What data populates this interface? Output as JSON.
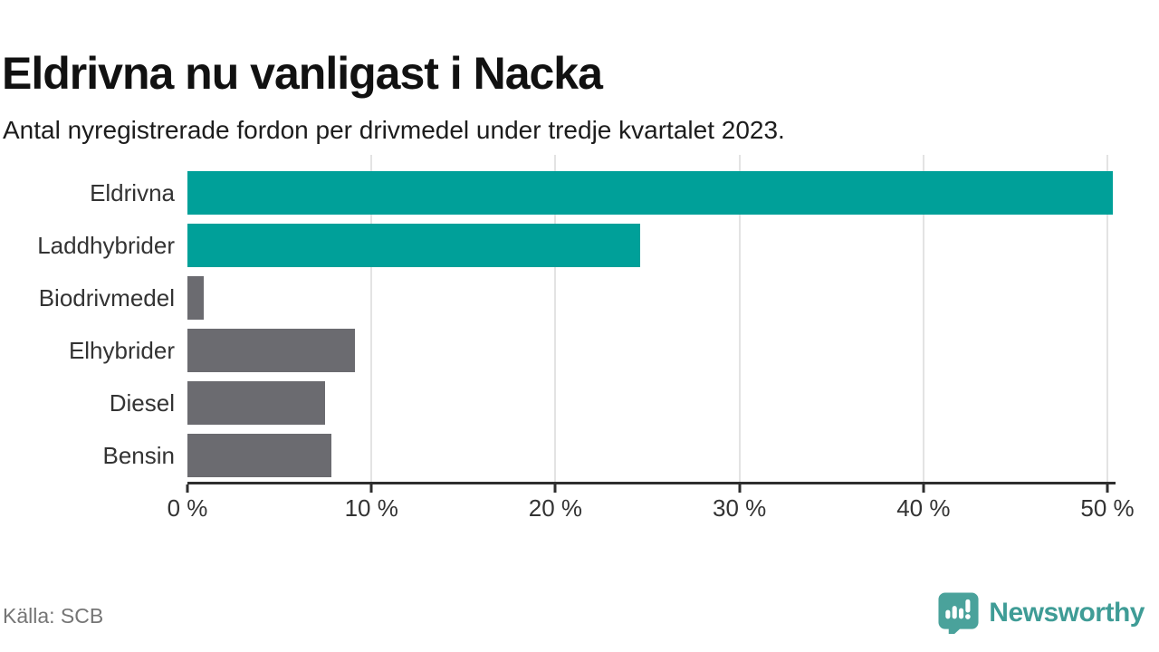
{
  "header": {
    "title": "Eldrivna nu vanligast i Nacka",
    "subtitle": "Antal nyregistrerade fordon per drivmedel under tredje kvartalet 2023."
  },
  "chart_data": {
    "type": "bar",
    "orientation": "horizontal",
    "title": "Eldrivna nu vanligast i Nacka",
    "subtitle": "Antal nyregistrerade fordon per drivmedel under tredje kvartalet 2023.",
    "categories": [
      "Eldrivna",
      "Laddhybrider",
      "Biodrivmedel",
      "Elhybrider",
      "Diesel",
      "Bensin"
    ],
    "values": [
      50.3,
      24.6,
      0.9,
      9.1,
      7.5,
      7.8
    ],
    "unit": "%",
    "bar_colors": [
      "#00a099",
      "#00a099",
      "#6b6b70",
      "#6b6b70",
      "#6b6b70",
      "#6b6b70"
    ],
    "highlight_color": "#00a099",
    "default_color": "#6b6b70",
    "x_ticks": [
      0,
      10,
      20,
      30,
      40,
      50
    ],
    "x_tick_labels": [
      "0 %",
      "10 %",
      "20 %",
      "30 %",
      "40 %",
      "50 %"
    ],
    "xlim": [
      0,
      50.44
    ],
    "grid": true,
    "legend": "none",
    "gridline_color": "#e3e3e3",
    "axis_color": "#2e2e2e"
  },
  "footer": {
    "source": "Källa: SCB",
    "brand": "Newsworthy",
    "brand_color": "#3f9c96",
    "logo_color": "#4aa29b"
  }
}
